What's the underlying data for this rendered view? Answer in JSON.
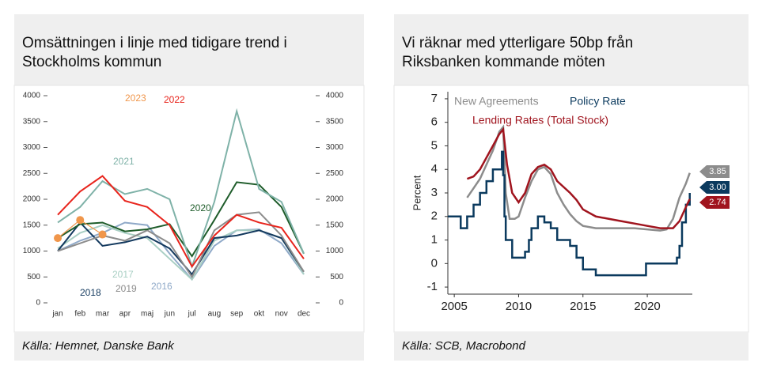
{
  "chart_data": [
    {
      "type": "line",
      "title": [
        "Omsättningen i linje med tidigare trend i",
        "Stockholms kommun"
      ],
      "source": "Källa: Hemnet, Danske Bank",
      "categories": [
        "jan",
        "feb",
        "mar",
        "apr",
        "maj",
        "jun",
        "jul",
        "aug",
        "sep",
        "okt",
        "nov",
        "dec"
      ],
      "ylim": [
        0,
        4000
      ],
      "yticks": [
        0,
        500,
        1000,
        1500,
        2000,
        2500,
        3000,
        3500,
        4000
      ],
      "y2lim": [
        0,
        4000
      ],
      "y2ticks": [
        0,
        500,
        1000,
        1500,
        2000,
        2500,
        3000,
        3500,
        4000
      ],
      "series": [
        {
          "name": "2023",
          "color": "#f0964b",
          "markers": true,
          "values": [
            1250,
            1600,
            1320,
            null,
            null,
            null,
            null,
            null,
            null,
            null,
            null,
            null
          ]
        },
        {
          "name": "2022",
          "color": "#e8241c",
          "values": [
            1700,
            2150,
            2450,
            1970,
            1850,
            1500,
            700,
            1300,
            1700,
            1550,
            1450,
            850
          ]
        },
        {
          "name": "2021",
          "color": "#7fb2a8",
          "values": [
            1550,
            1850,
            2350,
            2100,
            2200,
            2000,
            700,
            1950,
            3700,
            2200,
            1950,
            950
          ]
        },
        {
          "name": "2020",
          "color": "#1e5c2a",
          "values": [
            1250,
            1520,
            1550,
            1380,
            1420,
            1520,
            900,
            1600,
            2330,
            2280,
            1850,
            950
          ]
        },
        {
          "name": "2019",
          "color": "#8c8c8c",
          "values": [
            1000,
            1150,
            1300,
            1200,
            1400,
            1150,
            500,
            1400,
            1700,
            1750,
            1300,
            600
          ]
        },
        {
          "name": "2018",
          "color": "#13395e",
          "values": [
            1000,
            1550,
            1100,
            1170,
            1280,
            1050,
            550,
            1250,
            1300,
            1400,
            1250,
            600
          ]
        },
        {
          "name": "2017",
          "color": "#a9cfc4",
          "values": [
            1050,
            1350,
            1500,
            1350,
            1250,
            850,
            450,
            1200,
            1400,
            1400,
            1250,
            550
          ]
        },
        {
          "name": "2016",
          "color": "#8fa9c8",
          "values": [
            1000,
            1200,
            1350,
            1550,
            1500,
            950,
            450,
            1100,
            1400,
            1420,
            1150,
            550
          ]
        }
      ]
    },
    {
      "type": "line",
      "title": [
        "Vi räknar med ytterligare 50bp från",
        "Riksbanken kommande möten"
      ],
      "source": "Källa: SCB, Macrobond",
      "ylabel": "Percent",
      "xlim": [
        2004.5,
        2023.5
      ],
      "xticks": [
        2005,
        2010,
        2015,
        2020
      ],
      "ylim": [
        -1.3,
        7.3
      ],
      "yticks": [
        -1,
        0,
        1,
        2,
        3,
        4,
        5,
        6,
        7
      ],
      "series": [
        {
          "name": "New Agreements",
          "color": "#8c8c8c",
          "end_label": "3.85",
          "x": [
            2006,
            2006.5,
            2007,
            2007.5,
            2008,
            2008.5,
            2008.8,
            2009,
            2009.3,
            2009.7,
            2010,
            2010.5,
            2011,
            2011.5,
            2012,
            2012.5,
            2013,
            2013.5,
            2014,
            2014.5,
            2015,
            2016,
            2017,
            2018,
            2019,
            2020,
            2021,
            2021.5,
            2022,
            2022.5,
            2023,
            2023.3
          ],
          "values": [
            2.8,
            3.2,
            3.6,
            4.2,
            4.8,
            5.6,
            5.8,
            3.0,
            1.9,
            1.9,
            2.0,
            2.8,
            3.5,
            4.0,
            4.1,
            3.8,
            3.0,
            2.5,
            2.1,
            1.8,
            1.6,
            1.5,
            1.5,
            1.5,
            1.5,
            1.45,
            1.4,
            1.45,
            1.9,
            2.8,
            3.4,
            3.85
          ]
        },
        {
          "name": "Policy Rate",
          "color": "#0b3a5e",
          "step": true,
          "end_label": "3.00",
          "x": [
            2004.5,
            2005.5,
            2006,
            2006.5,
            2007,
            2007.5,
            2008,
            2008.7,
            2008.8,
            2008.9,
            2009,
            2009.5,
            2010.5,
            2010.8,
            2011,
            2011.5,
            2012,
            2012.5,
            2013,
            2014,
            2014.5,
            2015,
            2016,
            2019.9,
            2022.3,
            2022.5,
            2022.7,
            2023,
            2023.3
          ],
          "values": [
            2.0,
            1.5,
            2.0,
            2.5,
            3.0,
            3.5,
            4.0,
            4.75,
            3.75,
            2.0,
            1.0,
            0.25,
            0.5,
            1.0,
            1.5,
            2.0,
            1.75,
            1.5,
            1.0,
            0.75,
            0.25,
            -0.25,
            -0.5,
            0.0,
            0.25,
            0.75,
            1.75,
            2.5,
            3.0
          ]
        },
        {
          "name": "Lending Rates (Total Stock)",
          "color": "#a0141e",
          "end_label": "2.74",
          "x": [
            2006,
            2006.5,
            2007,
            2007.5,
            2008,
            2008.5,
            2008.8,
            2009.1,
            2009.5,
            2010,
            2010.5,
            2011,
            2011.5,
            2012,
            2012.5,
            2013,
            2014,
            2014.5,
            2015,
            2016,
            2017,
            2018,
            2019,
            2020,
            2021,
            2022,
            2022.5,
            2023,
            2023.3
          ],
          "values": [
            3.6,
            3.7,
            4.0,
            4.5,
            5.0,
            5.5,
            5.7,
            4.2,
            3.0,
            2.6,
            3.0,
            3.8,
            4.1,
            4.2,
            4.0,
            3.5,
            3.0,
            2.7,
            2.3,
            2.0,
            1.9,
            1.8,
            1.7,
            1.6,
            1.5,
            1.5,
            1.8,
            2.4,
            2.74
          ]
        }
      ]
    }
  ]
}
